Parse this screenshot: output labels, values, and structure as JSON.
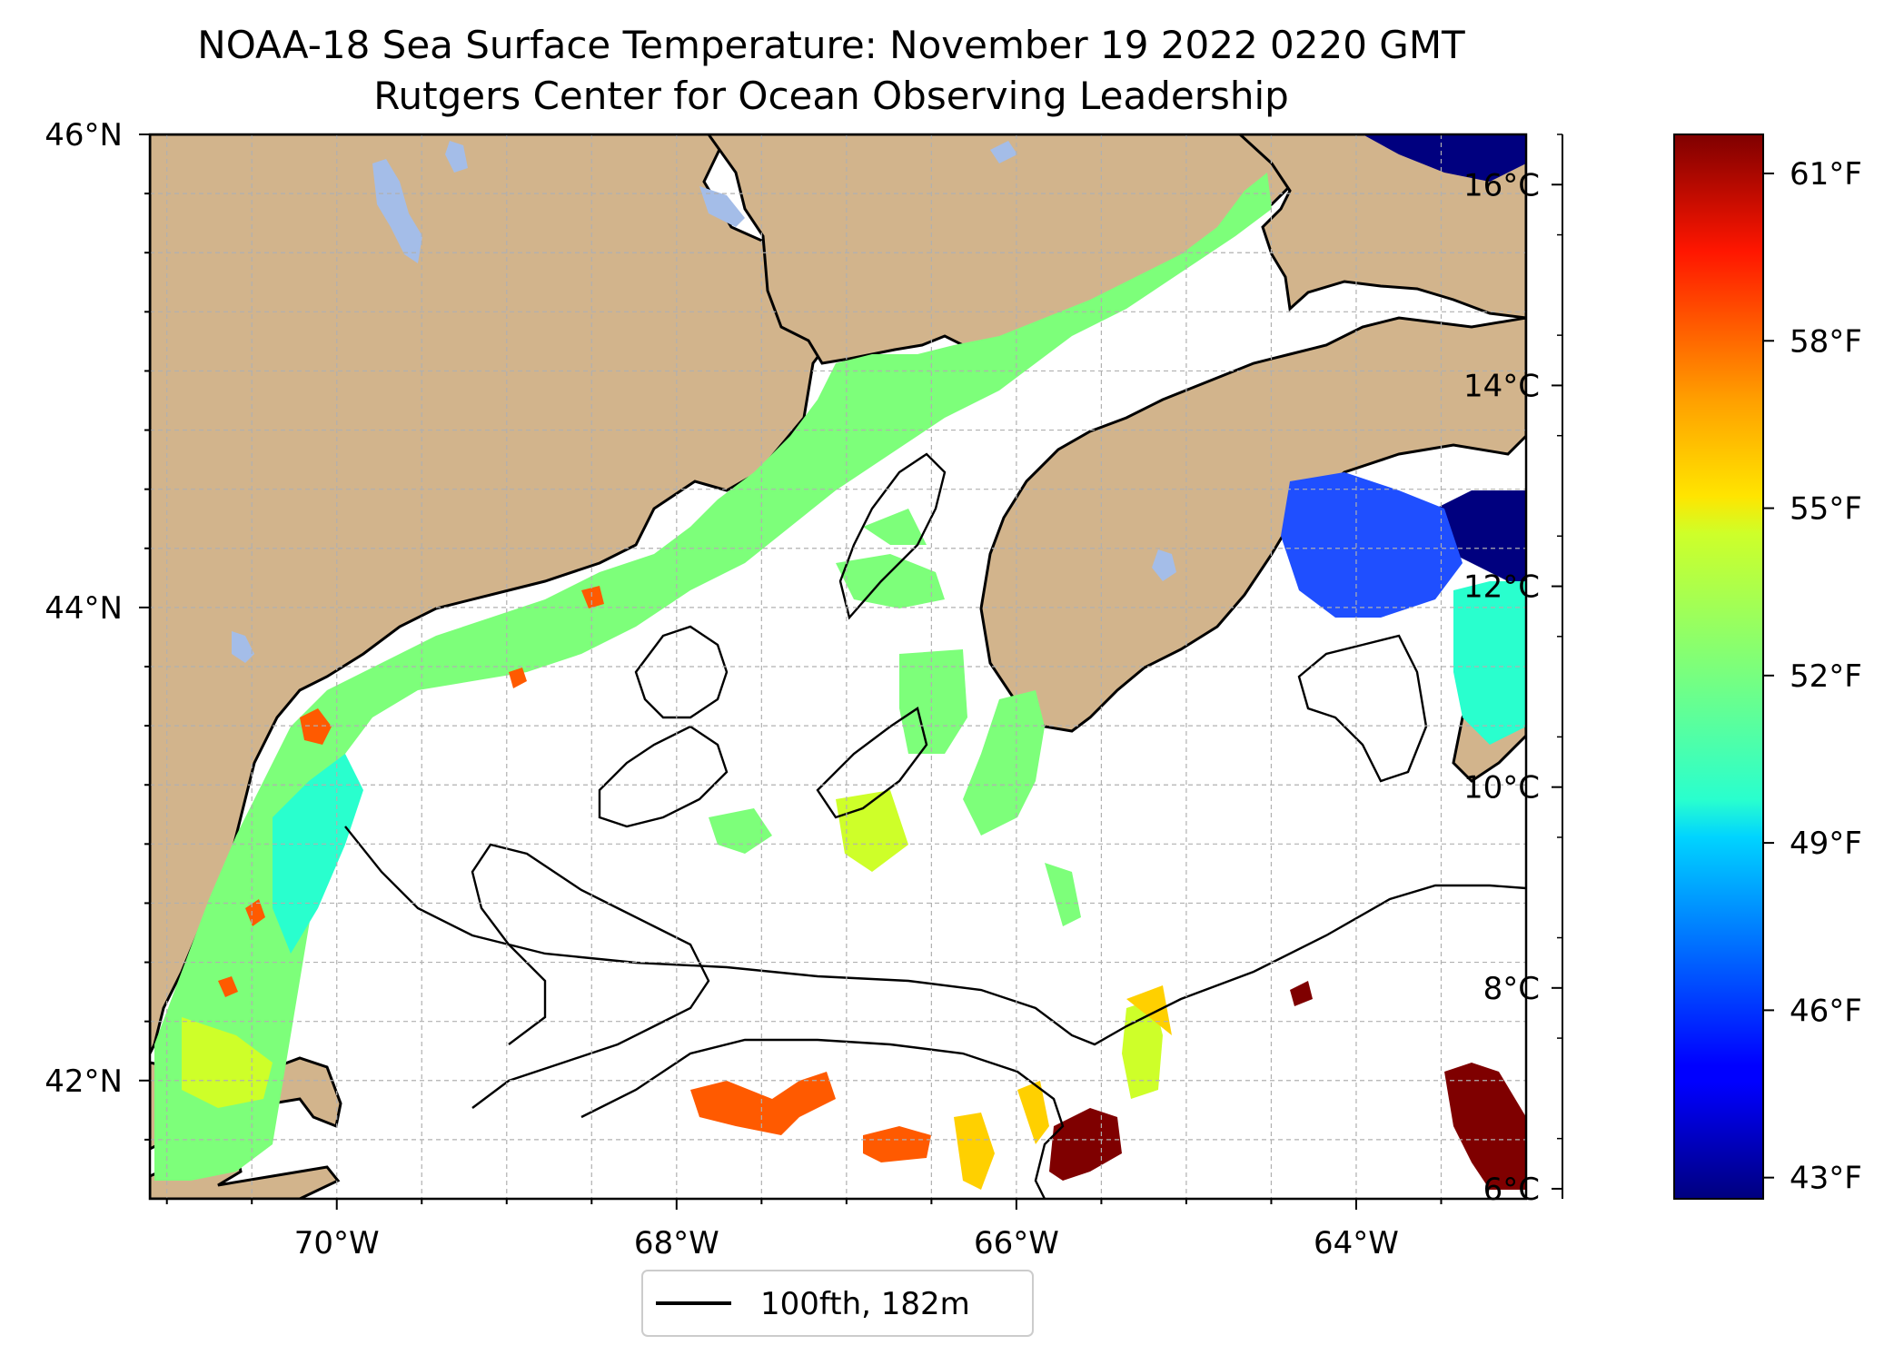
{
  "title": "NOAA-18 Sea Surface Temperature: November 19 2022 0220 GMT",
  "subtitle": "Rutgers Center for Ocean Observing Leadership",
  "map": {
    "lat_labels": [
      "46°N",
      "44°N",
      "42°N"
    ],
    "lon_labels": [
      "70°W",
      "68°W",
      "66°W",
      "64°W"
    ],
    "lat_values": [
      46,
      44,
      42
    ],
    "lon_values": [
      -70,
      -68,
      -66,
      -64
    ],
    "lon_range": [
      -71.1,
      -63.0
    ],
    "lat_range": [
      41.5,
      46.0
    ],
    "colors": {
      "land": "#d2b48c",
      "lakes": "#a4bde8",
      "coast": "#000000",
      "grid": "#b0b0b0"
    },
    "legend": {
      "label": "100fth, 182m",
      "line_color": "#000000"
    }
  },
  "colorbar": {
    "celsius_labels": [
      "16°C",
      "14°C",
      "12°C",
      "10°C",
      "8°C",
      "6°C"
    ],
    "celsius_values": [
      16,
      14,
      12,
      10,
      8,
      6
    ],
    "fahrenheit_labels": [
      "61°F",
      "58°F",
      "55°F",
      "52°F",
      "49°F",
      "46°F",
      "43°F"
    ],
    "fahrenheit_values": [
      61,
      58,
      55,
      52,
      49,
      46,
      43
    ],
    "range_c": [
      5.9,
      16.5
    ],
    "colormap": "jet"
  }
}
